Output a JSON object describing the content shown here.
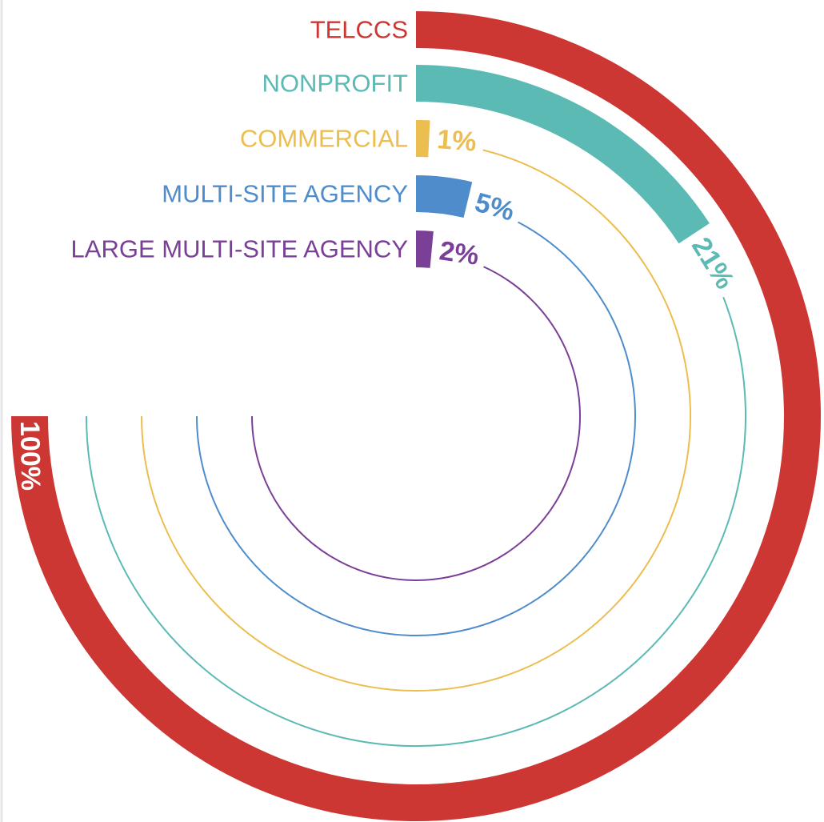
{
  "chart_data": {
    "type": "radial_bar",
    "categories": [
      "TELCCS",
      "NONPROFIT",
      "COMMERCIAL",
      "MULTI-SITE AGENCY",
      "LARGE MULTI-SITE AGENCY"
    ],
    "values": [
      100,
      21,
      1,
      5,
      2
    ],
    "value_labels": [
      "100%",
      "21%",
      "1%",
      "5%",
      "2%"
    ],
    "colors": [
      "#cc3633",
      "#5bbab3",
      "#ecbd4f",
      "#4f8ccb",
      "#7a3f96"
    ],
    "ylim": [
      0,
      100
    ]
  }
}
